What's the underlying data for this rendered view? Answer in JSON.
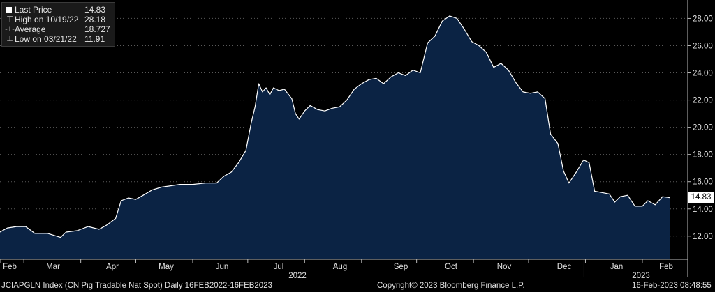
{
  "legend": {
    "items": [
      {
        "symbol": "square",
        "label": "Last Price",
        "value": "14.83"
      },
      {
        "symbol": "high",
        "label": "High on 10/19/22",
        "value": "28.18"
      },
      {
        "symbol": "avg",
        "label": "Average",
        "value": "18.727"
      },
      {
        "symbol": "low",
        "label": "Low on 03/21/22",
        "value": "11.91"
      }
    ]
  },
  "last_price_tag": "14.83",
  "footer": {
    "left": "JCIAPGLN Index (CN Pig Tradable Nat Spot)  Daily 16FEB2022-16FEB2023",
    "center": "Copyright© 2023 Bloomberg Finance L.P.",
    "right": "16-Feb-2023 08:48:55"
  },
  "colors": {
    "background": "#000000",
    "area_fill": "#0b2344",
    "line": "#ffffff",
    "grid": "#5a5a5a"
  },
  "chart_data": {
    "type": "area",
    "title": "",
    "xlabel": "",
    "ylabel": "",
    "ylim": [
      10.3,
      29.2
    ],
    "grid": "horizontal dotted",
    "legend_position": "top-left",
    "y_ticks": [
      "12.00",
      "14.00",
      "16.00",
      "18.00",
      "20.00",
      "22.00",
      "24.00",
      "26.00",
      "28.00"
    ],
    "x_months": [
      "Feb",
      "Mar",
      "Apr",
      "May",
      "Jun",
      "Jul",
      "Aug",
      "Sep",
      "Oct",
      "Nov",
      "Dec",
      "Jan",
      "Feb"
    ],
    "x_years": [
      "2022",
      "2023"
    ],
    "series": [
      {
        "points": [
          [
            "2022-02-16",
            12.3
          ],
          [
            "2022-02-20",
            12.6
          ],
          [
            "2022-02-25",
            12.7
          ],
          [
            "2022-03-02",
            12.7
          ],
          [
            "2022-03-07",
            12.2
          ],
          [
            "2022-03-14",
            12.2
          ],
          [
            "2022-03-21",
            11.91
          ],
          [
            "2022-03-24",
            12.3
          ],
          [
            "2022-03-30",
            12.4
          ],
          [
            "2022-04-05",
            12.7
          ],
          [
            "2022-04-11",
            12.5
          ],
          [
            "2022-04-15",
            12.8
          ],
          [
            "2022-04-20",
            13.3
          ],
          [
            "2022-04-23",
            14.6
          ],
          [
            "2022-04-27",
            14.8
          ],
          [
            "2022-05-01",
            14.7
          ],
          [
            "2022-05-05",
            15.0
          ],
          [
            "2022-05-10",
            15.4
          ],
          [
            "2022-05-15",
            15.6
          ],
          [
            "2022-05-20",
            15.7
          ],
          [
            "2022-05-25",
            15.8
          ],
          [
            "2022-06-01",
            15.8
          ],
          [
            "2022-06-08",
            15.9
          ],
          [
            "2022-06-14",
            15.9
          ],
          [
            "2022-06-18",
            16.4
          ],
          [
            "2022-06-22",
            16.7
          ],
          [
            "2022-06-26",
            17.4
          ],
          [
            "2022-06-30",
            18.3
          ],
          [
            "2022-07-03",
            20.4
          ],
          [
            "2022-07-05",
            21.5
          ],
          [
            "2022-07-07",
            23.2
          ],
          [
            "2022-07-09",
            22.6
          ],
          [
            "2022-07-11",
            22.9
          ],
          [
            "2022-07-13",
            22.4
          ],
          [
            "2022-07-15",
            22.9
          ],
          [
            "2022-07-18",
            22.7
          ],
          [
            "2022-07-21",
            22.8
          ],
          [
            "2022-07-25",
            22.1
          ],
          [
            "2022-07-27",
            21.0
          ],
          [
            "2022-07-29",
            20.6
          ],
          [
            "2022-08-01",
            21.2
          ],
          [
            "2022-08-04",
            21.6
          ],
          [
            "2022-08-08",
            21.3
          ],
          [
            "2022-08-12",
            21.2
          ],
          [
            "2022-08-16",
            21.4
          ],
          [
            "2022-08-20",
            21.5
          ],
          [
            "2022-08-24",
            22.0
          ],
          [
            "2022-08-28",
            22.8
          ],
          [
            "2022-09-01",
            23.2
          ],
          [
            "2022-09-05",
            23.5
          ],
          [
            "2022-09-09",
            23.6
          ],
          [
            "2022-09-13",
            23.2
          ],
          [
            "2022-09-17",
            23.7
          ],
          [
            "2022-09-21",
            24.0
          ],
          [
            "2022-09-25",
            23.8
          ],
          [
            "2022-09-29",
            24.2
          ],
          [
            "2022-10-03",
            24.0
          ],
          [
            "2022-10-07",
            26.2
          ],
          [
            "2022-10-11",
            26.7
          ],
          [
            "2022-10-15",
            27.8
          ],
          [
            "2022-10-19",
            28.18
          ],
          [
            "2022-10-23",
            28.0
          ],
          [
            "2022-10-27",
            27.2
          ],
          [
            "2022-10-31",
            26.3
          ],
          [
            "2022-11-04",
            26.0
          ],
          [
            "2022-11-08",
            25.5
          ],
          [
            "2022-11-12",
            24.4
          ],
          [
            "2022-11-16",
            24.7
          ],
          [
            "2022-11-20",
            24.2
          ],
          [
            "2022-11-24",
            23.3
          ],
          [
            "2022-11-28",
            22.6
          ],
          [
            "2022-12-02",
            22.5
          ],
          [
            "2022-12-06",
            22.6
          ],
          [
            "2022-12-10",
            22.1
          ],
          [
            "2022-12-13",
            19.5
          ],
          [
            "2022-12-17",
            18.8
          ],
          [
            "2022-12-20",
            16.8
          ],
          [
            "2022-12-23",
            15.9
          ],
          [
            "2022-12-27",
            16.7
          ],
          [
            "2022-12-31",
            17.6
          ],
          [
            "2023-01-03",
            17.4
          ],
          [
            "2023-01-06",
            15.3
          ],
          [
            "2023-01-10",
            15.2
          ],
          [
            "2023-01-14",
            15.1
          ],
          [
            "2023-01-17",
            14.5
          ],
          [
            "2023-01-20",
            14.9
          ],
          [
            "2023-01-24",
            15.0
          ],
          [
            "2023-01-28",
            14.2
          ],
          [
            "2023-02-01",
            14.2
          ],
          [
            "2023-02-04",
            14.6
          ],
          [
            "2023-02-08",
            14.3
          ],
          [
            "2023-02-12",
            14.9
          ],
          [
            "2023-02-16",
            14.83
          ]
        ]
      }
    ]
  }
}
